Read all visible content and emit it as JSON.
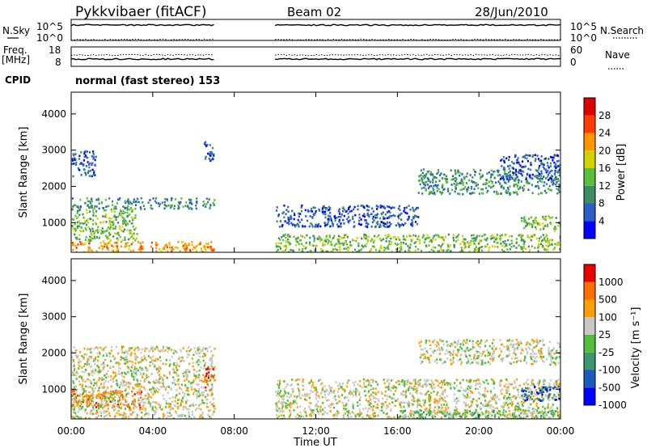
{
  "header": {
    "station": "Pykkvibaer (fitACF)",
    "beam": "Beam 02",
    "date": "28/Jun/2010"
  },
  "status_panels": {
    "nsky_label": "N.Sky",
    "nsky_ticks": [
      "10^5",
      "10^0"
    ],
    "nsearch_label": "N.Search",
    "nsearch_ticks": [
      "10^5",
      "10^0"
    ],
    "freq_label_1": "Freq.",
    "freq_label_2": "[MHz]",
    "freq_ticks": [
      "18",
      "8"
    ],
    "nave_label": "Nave",
    "nave_ticks": [
      "60",
      "0"
    ],
    "cpid_label": "CPID",
    "cpid_text": "normal (fast stereo) 153"
  },
  "chart_data": [
    {
      "type": "heatmap",
      "name": "power",
      "ylabel": "Slant Range [km]",
      "yticks": [
        "4000",
        "3000",
        "2000",
        "1000"
      ],
      "ylim": [
        180,
        4600
      ],
      "xlim_hours": [
        0,
        24
      ],
      "data_gap_hours": [
        7,
        10
      ],
      "colorbar_label": "Power [dB]",
      "colorbar_ticks": [
        "28",
        "24",
        "20",
        "16",
        "12",
        "8",
        "4"
      ],
      "colors": [
        "#0000ff",
        "#2a5fc8",
        "#3c8c64",
        "#5abe3c",
        "#d2d200",
        "#ff9600",
        "#ff3c00",
        "#dc0000"
      ],
      "features": [
        {
          "x0": 0,
          "x1": 7,
          "y0": 200,
          "y1": 500,
          "level": 5
        },
        {
          "x0": 0,
          "x1": 3.2,
          "y0": 500,
          "y1": 1400,
          "level": 3
        },
        {
          "x0": 0,
          "x1": 7,
          "y0": 1400,
          "y1": 1700,
          "level": 2
        },
        {
          "x0": 0,
          "x1": 1.2,
          "y0": 2300,
          "y1": 3000,
          "level": 1
        },
        {
          "x0": 6.5,
          "x1": 7,
          "y0": 2700,
          "y1": 3300,
          "level": 1
        },
        {
          "x0": 10,
          "x1": 17,
          "y0": 900,
          "y1": 1500,
          "level": 1
        },
        {
          "x0": 10,
          "x1": 24,
          "y0": 200,
          "y1": 700,
          "level": 3
        },
        {
          "x0": 17,
          "x1": 24,
          "y0": 1800,
          "y1": 2500,
          "level": 2
        },
        {
          "x0": 21,
          "x1": 24,
          "y0": 2200,
          "y1": 2900,
          "level": 1
        },
        {
          "x0": 22,
          "x1": 24,
          "y0": 800,
          "y1": 1200,
          "level": 3
        }
      ]
    },
    {
      "type": "heatmap",
      "name": "velocity",
      "ylabel": "Slant Range [km]",
      "yticks": [
        "4000",
        "3000",
        "2000",
        "1000"
      ],
      "ylim": [
        180,
        4600
      ],
      "xlim_hours": [
        0,
        24
      ],
      "data_gap_hours": [
        7,
        10
      ],
      "colorbar_label": "Velocity [m s⁻¹]",
      "colorbar_ticks": [
        "1000",
        "500",
        "100",
        "25",
        "-25",
        "-100",
        "-500",
        "-1000"
      ],
      "colors": [
        "#0000ff",
        "#1e5abe",
        "#3c966e",
        "#50be3c",
        "#c8c8c8",
        "#ffa000",
        "#ff6e00",
        "#e60000"
      ],
      "features": [
        {
          "x0": 0,
          "x1": 3.5,
          "y0": 500,
          "y1": 1000,
          "level": 6
        },
        {
          "x0": 0,
          "x1": 7,
          "y0": 200,
          "y1": 2200,
          "level": 4
        },
        {
          "x0": 6.5,
          "x1": 7,
          "y0": 1000,
          "y1": 1600,
          "level": 6
        },
        {
          "x0": 10,
          "x1": 24,
          "y0": 200,
          "y1": 1300,
          "level": 4
        },
        {
          "x0": 17,
          "x1": 24,
          "y0": 1700,
          "y1": 2400,
          "level": 4
        },
        {
          "x0": 16,
          "x1": 24,
          "y0": 200,
          "y1": 450,
          "level": 3
        },
        {
          "x0": 22,
          "x1": 24,
          "y0": 700,
          "y1": 1100,
          "level": 1
        }
      ]
    }
  ],
  "x_axis": {
    "ticks": [
      "00:00",
      "04:00",
      "08:00",
      "12:00",
      "16:00",
      "20:00",
      "00:00"
    ],
    "label": "Time UT"
  }
}
